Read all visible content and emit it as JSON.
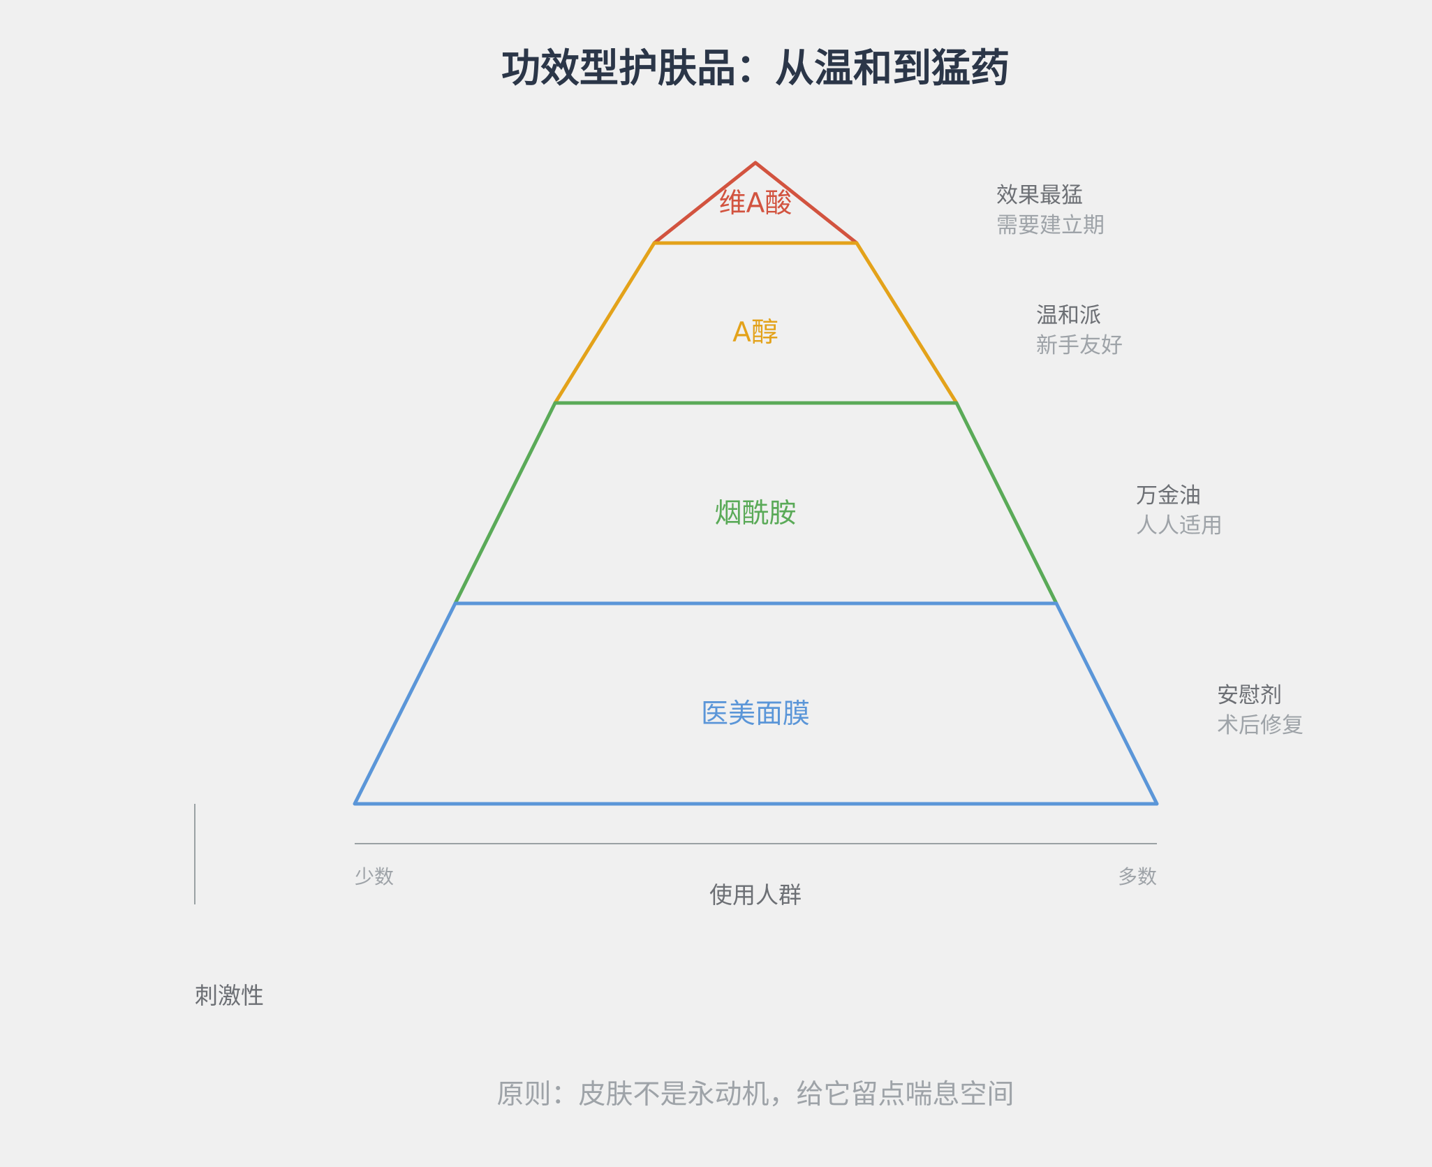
{
  "title": "功效型护肤品：从温和到猛药",
  "colors": {
    "background": "#f0f0f0",
    "title": "#2b3648",
    "note_primary": "#6c6f74",
    "note_secondary": "#9ea3a8",
    "axis": "#9aa1a4",
    "footer": "#9ea3a8"
  },
  "tiers": [
    {
      "label": "维A酸",
      "color": "#d2533f",
      "note_primary": "效果最猛",
      "note_secondary": "需要建立期"
    },
    {
      "label": "A醇",
      "color": "#e3a21a",
      "note_primary": "温和派",
      "note_secondary": "新手友好"
    },
    {
      "label": "烟酰胺",
      "color": "#5aaa58",
      "note_primary": "万金油",
      "note_secondary": "人人适用"
    },
    {
      "label": "医美面膜",
      "color": "#5b96d8",
      "note_primary": "安慰剂",
      "note_secondary": "术后修复"
    }
  ],
  "x_axis": {
    "title": "使用人群",
    "start_label": "少数",
    "end_label": "多数"
  },
  "y_axis": {
    "title": "刺激性"
  },
  "footer": "原则：皮肤不是永动机，给它留点喘息空间"
}
